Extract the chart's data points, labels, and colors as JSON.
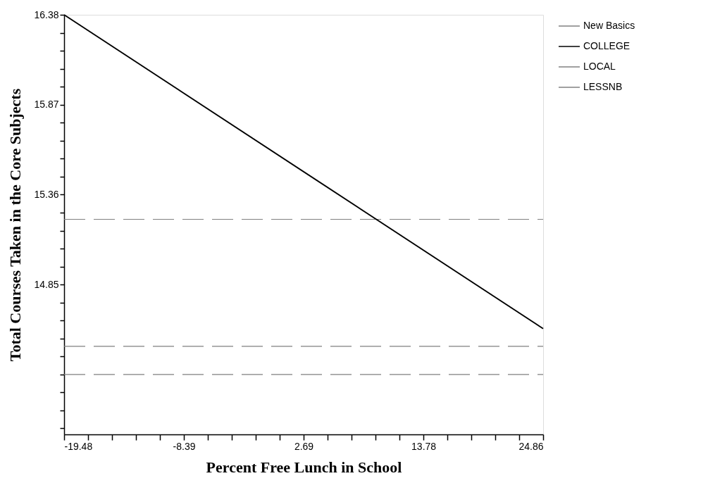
{
  "chart_data": {
    "type": "line",
    "xlabel": "Percent Free Lunch in School",
    "ylabel": "Total Courses Taken in the Core Subjects",
    "x": [
      -19.48,
      24.86
    ],
    "series": [
      {
        "name": "New Basics",
        "color": "#808080",
        "line_style": "dashed",
        "values": [
          15.22,
          15.22
        ]
      },
      {
        "name": "COLLEGE",
        "color": "#000000",
        "line_style": "solid",
        "values": [
          16.38,
          14.6
        ]
      },
      {
        "name": "LOCAL",
        "color": "#808080",
        "line_style": "dashed",
        "values": [
          14.5,
          14.5
        ]
      },
      {
        "name": "LESSNB",
        "color": "#808080",
        "line_style": "dashed",
        "values": [
          14.34,
          14.34
        ]
      }
    ],
    "xlim": [
      -19.48,
      24.86
    ],
    "xticks": [
      -19.48,
      {
        "value": -17.262,
        "label": null
      },
      {
        "value": -15.044,
        "label": null
      },
      {
        "value": -12.826,
        "label": null
      },
      {
        "value": -10.608,
        "label": null
      },
      -8.39,
      {
        "value": -6.172,
        "label": null
      },
      {
        "value": -3.954,
        "label": null
      },
      {
        "value": -1.736,
        "label": null
      },
      {
        "value": 0.482,
        "label": null
      },
      2.69,
      {
        "value": 4.908,
        "label": null
      },
      {
        "value": 7.126,
        "label": null
      },
      {
        "value": 9.344,
        "label": null
      },
      {
        "value": 11.562,
        "label": null
      },
      13.78,
      {
        "value": 15.998,
        "label": null
      },
      {
        "value": 18.216,
        "label": null
      },
      {
        "value": 20.434,
        "label": null
      },
      {
        "value": 22.652,
        "label": null
      },
      24.86
    ],
    "ylim": [
      14.0,
      16.38
    ],
    "yticks": [
      16.38,
      {
        "value": 16.278,
        "label": null
      },
      {
        "value": 16.176,
        "label": null
      },
      {
        "value": 16.074,
        "label": null
      },
      {
        "value": 15.972,
        "label": null
      },
      15.87,
      {
        "value": 15.768,
        "label": null
      },
      {
        "value": 15.666,
        "label": null
      },
      {
        "value": 15.564,
        "label": null
      },
      {
        "value": 15.462,
        "label": null
      },
      15.36,
      {
        "value": 15.258,
        "label": null
      },
      {
        "value": 15.156,
        "label": null
      },
      {
        "value": 15.054,
        "label": null
      },
      {
        "value": 14.952,
        "label": null
      },
      14.85,
      {
        "value": 14.748,
        "label": null
      },
      {
        "value": 14.646,
        "label": null
      },
      {
        "value": 14.544,
        "label": null
      },
      {
        "value": 14.442,
        "label": null
      },
      {
        "value": 14.34,
        "label": null
      },
      {
        "value": 14.238,
        "label": null
      },
      {
        "value": 14.136,
        "label": null
      },
      {
        "value": 14.034,
        "label": null
      }
    ],
    "grid": false,
    "legend": "top right",
    "marker": "none"
  }
}
